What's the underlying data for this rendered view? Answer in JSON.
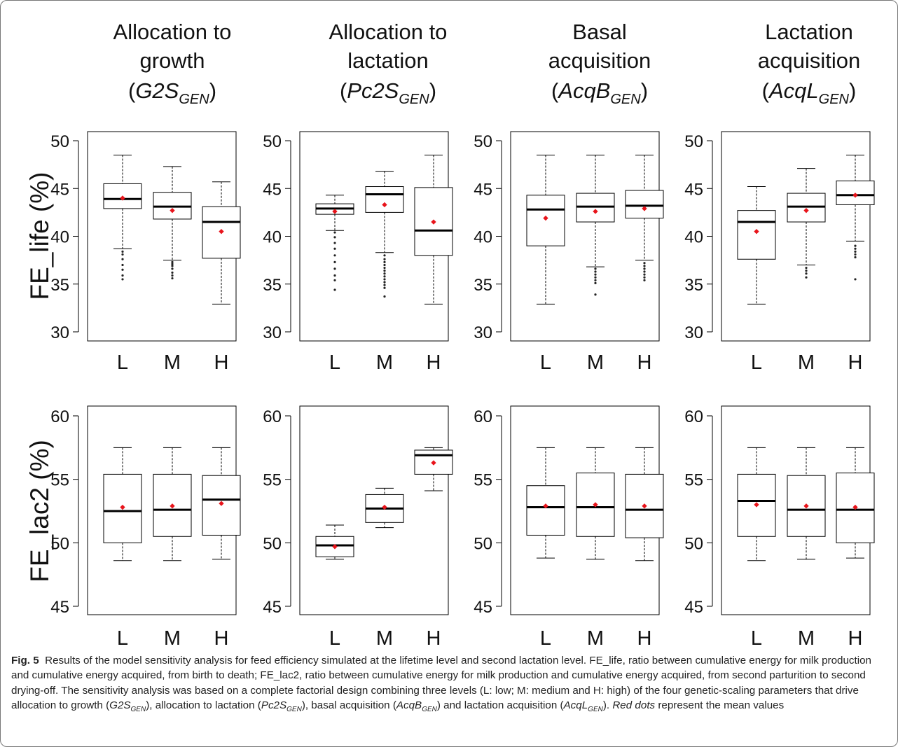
{
  "columns": [
    {
      "line1": "Allocation to",
      "line2": "growth",
      "sym": "G2S",
      "sub": "GEN"
    },
    {
      "line1": "Allocation to",
      "line2": "lactation",
      "sym": "Pc2S",
      "sub": "GEN"
    },
    {
      "line1": "Basal",
      "line2": "acquisition",
      "sym": "AcqB",
      "sub": "GEN"
    },
    {
      "line1": "Lactation",
      "line2": "acquisition",
      "sym": "AcqL",
      "sub": "GEN"
    }
  ],
  "chart_data": [
    {
      "type": "boxplot",
      "ylabel": "FE_life (%)",
      "ylim": [
        30,
        50
      ],
      "yticks": [
        30,
        35,
        40,
        45,
        50
      ],
      "categories": [
        "L",
        "M",
        "H"
      ],
      "panels": [
        {
          "column": "G2S_GEN",
          "boxes": [
            {
              "min": 38.7,
              "q1": 42.9,
              "median": 43.9,
              "q3": 45.5,
              "max": 48.5,
              "mean": 44.0,
              "outliers": [
                38.4,
                38.1,
                37.6,
                37.0,
                36.5,
                35.9,
                35.5
              ]
            },
            {
              "min": 37.5,
              "q1": 41.8,
              "median": 43.1,
              "q3": 44.6,
              "max": 47.3,
              "mean": 42.7,
              "outliers": [
                37.3,
                37.1,
                36.9,
                36.6,
                36.2,
                35.9,
                35.6
              ]
            },
            {
              "min": 32.9,
              "q1": 37.7,
              "median": 41.5,
              "q3": 43.1,
              "max": 45.7,
              "mean": 40.5,
              "outliers": []
            }
          ]
        },
        {
          "column": "Pc2S_GEN",
          "boxes": [
            {
              "min": 40.6,
              "q1": 42.3,
              "median": 42.9,
              "q3": 43.4,
              "max": 44.3,
              "mean": 42.6,
              "outliers": [
                40.4,
                39.9,
                39.3,
                38.7,
                38.0,
                37.3,
                36.6,
                35.9,
                35.4,
                34.4
              ]
            },
            {
              "min": 38.3,
              "q1": 42.5,
              "median": 44.4,
              "q3": 45.2,
              "max": 46.8,
              "mean": 43.3,
              "outliers": [
                38.0,
                37.6,
                37.3,
                37.0,
                36.7,
                36.4,
                36.1,
                35.8,
                35.5,
                35.2,
                34.9,
                34.6,
                33.7
              ]
            },
            {
              "min": 32.9,
              "q1": 38.0,
              "median": 40.6,
              "q3": 45.1,
              "max": 48.5,
              "mean": 41.5,
              "outliers": []
            }
          ]
        },
        {
          "column": "AcqB_GEN",
          "boxes": [
            {
              "min": 32.9,
              "q1": 39.0,
              "median": 42.8,
              "q3": 44.3,
              "max": 48.5,
              "mean": 41.9,
              "outliers": []
            },
            {
              "min": 36.8,
              "q1": 41.5,
              "median": 43.1,
              "q3": 44.5,
              "max": 48.5,
              "mean": 42.6,
              "outliers": [
                36.6,
                36.3,
                36.0,
                35.7,
                35.4,
                35.1,
                33.9
              ]
            },
            {
              "min": 37.5,
              "q1": 41.9,
              "median": 43.2,
              "q3": 44.8,
              "max": 48.5,
              "mean": 42.9,
              "outliers": [
                37.2,
                36.9,
                36.6,
                36.3,
                36.0,
                35.7,
                35.4
              ]
            }
          ]
        },
        {
          "column": "AcqL_GEN",
          "boxes": [
            {
              "min": 32.9,
              "q1": 37.6,
              "median": 41.5,
              "q3": 42.7,
              "max": 45.2,
              "mean": 40.5,
              "outliers": []
            },
            {
              "min": 37.0,
              "q1": 41.5,
              "median": 43.1,
              "q3": 44.5,
              "max": 47.1,
              "mean": 42.7,
              "outliers": [
                36.7,
                36.4,
                36.1,
                35.7
              ]
            },
            {
              "min": 39.5,
              "q1": 43.3,
              "median": 44.3,
              "q3": 45.8,
              "max": 48.5,
              "mean": 44.3,
              "outliers": [
                39.0,
                38.7,
                38.4,
                38.1,
                37.8,
                35.5
              ]
            }
          ]
        }
      ]
    },
    {
      "type": "boxplot",
      "ylabel": "FE_lac2 (%)",
      "ylim": [
        45,
        60
      ],
      "yticks": [
        45,
        50,
        55,
        60
      ],
      "categories": [
        "L",
        "M",
        "H"
      ],
      "panels": [
        {
          "column": "G2S_GEN",
          "boxes": [
            {
              "min": 48.6,
              "q1": 50.0,
              "median": 52.5,
              "q3": 55.4,
              "max": 57.5,
              "mean": 52.8,
              "outliers": []
            },
            {
              "min": 48.6,
              "q1": 50.5,
              "median": 52.6,
              "q3": 55.4,
              "max": 57.5,
              "mean": 52.9,
              "outliers": []
            },
            {
              "min": 48.7,
              "q1": 50.6,
              "median": 53.4,
              "q3": 55.3,
              "max": 57.5,
              "mean": 53.1,
              "outliers": []
            }
          ]
        },
        {
          "column": "Pc2S_GEN",
          "boxes": [
            {
              "min": 48.7,
              "q1": 48.9,
              "median": 49.8,
              "q3": 50.5,
              "max": 51.4,
              "mean": 49.7,
              "outliers": []
            },
            {
              "min": 51.2,
              "q1": 51.6,
              "median": 52.7,
              "q3": 53.8,
              "max": 54.3,
              "mean": 52.8,
              "outliers": []
            },
            {
              "min": 54.1,
              "q1": 55.4,
              "median": 56.9,
              "q3": 57.3,
              "max": 57.5,
              "mean": 56.3,
              "outliers": []
            }
          ]
        },
        {
          "column": "AcqB_GEN",
          "boxes": [
            {
              "min": 48.8,
              "q1": 50.6,
              "median": 52.8,
              "q3": 54.5,
              "max": 57.5,
              "mean": 52.9,
              "outliers": []
            },
            {
              "min": 48.7,
              "q1": 50.5,
              "median": 52.8,
              "q3": 55.5,
              "max": 57.5,
              "mean": 53.0,
              "outliers": []
            },
            {
              "min": 48.6,
              "q1": 50.4,
              "median": 52.6,
              "q3": 55.4,
              "max": 57.5,
              "mean": 52.9,
              "outliers": []
            }
          ]
        },
        {
          "column": "AcqL_GEN",
          "boxes": [
            {
              "min": 48.6,
              "q1": 50.5,
              "median": 53.3,
              "q3": 55.4,
              "max": 57.5,
              "mean": 53.0,
              "outliers": []
            },
            {
              "min": 48.7,
              "q1": 50.5,
              "median": 52.6,
              "q3": 55.3,
              "max": 57.5,
              "mean": 52.9,
              "outliers": []
            },
            {
              "min": 48.8,
              "q1": 50.0,
              "median": 52.6,
              "q3": 55.5,
              "max": 57.5,
              "mean": 52.8,
              "outliers": []
            }
          ]
        }
      ]
    }
  ],
  "colors": {
    "mean_dot": "#e8141b",
    "box_line": "#000000",
    "axis": "#000000",
    "frame": "#777777"
  },
  "caption": {
    "label": "Fig. 5",
    "t1": "Results of the model sensitivity analysis for feed efficiency simulated at the lifetime level and second lactation level. FE_life, ratio between cumulative energy for milk production and cumulative energy acquired, from birth to death; FE_lac2, ratio between cumulative energy for milk production and cumulative energy acquired, from second parturition to second drying-off. The sensitivity analysis was based on a complete factorial design combining three levels (L: low; M: medium and H: high) of the four genetic-scaling parameters that drive allocation to growth (",
    "s1": "G2S",
    "s1sub": "GEN",
    "t2": "), allocation to lactation (",
    "s2": "Pc2S",
    "s2sub": "GEN",
    "t3": "), basal acquisition (",
    "s3": "AcqB",
    "s3sub": "GEN",
    "t4": ") and lactation acquisition (",
    "s4": "AcqL",
    "s4sub": "GEN",
    "t5": "). ",
    "red": "Red dots",
    "t6": " represent the mean values"
  }
}
